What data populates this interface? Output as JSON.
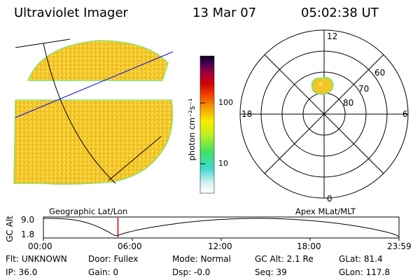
{
  "header": {
    "instrument": "Ultraviolet Imager",
    "date": "13 Mar 07",
    "time": "05:02:38 UT"
  },
  "colorbar": {
    "label": "photon cm⁻²s⁻¹",
    "tick_labels": [
      "100",
      "10"
    ]
  },
  "polar_plot": {
    "mlt_labels": [
      "12",
      "18",
      "6",
      "0"
    ],
    "lat_labels": [
      "60",
      "70",
      "80"
    ]
  },
  "captions": {
    "left": "Geographic Lat/Lon",
    "right": "Apex MLat/MLT"
  },
  "timeline": {
    "ylabel": "GC Alt",
    "ytick_labels": [
      "9.0",
      "1.8"
    ],
    "xtick_labels": [
      "00:00",
      "06:00",
      "12:00",
      "18:00",
      "23:59"
    ],
    "current_time_marker": "05:02"
  },
  "info": {
    "row1": [
      {
        "label": "Flt:",
        "value": "UNKNOWN"
      },
      {
        "label": "Door:",
        "value": "Fullex"
      },
      {
        "label": "Mode:",
        "value": "Normal"
      },
      {
        "label": "GC Alt:",
        "value": "2.1 Re"
      },
      {
        "label": "GLat:",
        "value": "81.4"
      }
    ],
    "row2": [
      {
        "label": "IP:",
        "value": "36.0"
      },
      {
        "label": "Gain:",
        "value": "0"
      },
      {
        "label": "Dsp:",
        "value": "-0.0"
      },
      {
        "label": "Seq:",
        "value": "39"
      },
      {
        "label": "GLon:",
        "value": "117.8"
      }
    ]
  },
  "colors": {
    "background": "#ffffff",
    "image_fill": "#f3c526",
    "image_fill_light": "#f7dc4a",
    "image_edge": "#8fe26b",
    "graticule_blue": "#0000ff",
    "time_marker": "#cc0000"
  }
}
